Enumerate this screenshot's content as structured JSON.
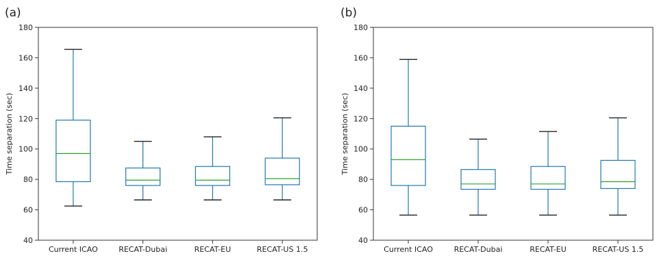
{
  "figure": {
    "panel_labels": [
      "(a)",
      "(b)"
    ]
  },
  "colors": {
    "box": "#1f77b4",
    "median": "#2ca02c",
    "axis": "#333333"
  },
  "chart_data": [
    {
      "type": "box",
      "panel_label": "(a)",
      "ylabel": "Time separation (sec)",
      "xlabel": "",
      "ylim": [
        40,
        180
      ],
      "yticks": [
        40,
        60,
        80,
        100,
        120,
        140,
        160,
        180
      ],
      "grid": false,
      "categories": [
        "Current ICAO",
        "RECAT-Dubai",
        "RECAT-EU",
        "RECAT-US 1.5"
      ],
      "boxes": [
        {
          "whisker_low": 62.5,
          "q1": 78.5,
          "median": 97,
          "q3": 119,
          "whisker_high": 165.5
        },
        {
          "whisker_low": 66.5,
          "q1": 76,
          "median": 79.5,
          "q3": 87.5,
          "whisker_high": 105
        },
        {
          "whisker_low": 66.5,
          "q1": 76,
          "median": 79.5,
          "q3": 88.5,
          "whisker_high": 108
        },
        {
          "whisker_low": 66.5,
          "q1": 76.5,
          "median": 80.5,
          "q3": 94,
          "whisker_high": 120.5
        }
      ]
    },
    {
      "type": "box",
      "panel_label": "(b)",
      "ylabel": "Time separation (sec)",
      "xlabel": "",
      "ylim": [
        40,
        180
      ],
      "yticks": [
        40,
        60,
        80,
        100,
        120,
        140,
        160,
        180
      ],
      "grid": false,
      "categories": [
        "Current ICAO",
        "RECAT-Dubai",
        "RECAT-EU",
        "RECAT-US 1.5"
      ],
      "boxes": [
        {
          "whisker_low": 56.5,
          "q1": 76,
          "median": 93,
          "q3": 115,
          "whisker_high": 159
        },
        {
          "whisker_low": 56.5,
          "q1": 73.5,
          "median": 77,
          "q3": 86.5,
          "whisker_high": 106.5
        },
        {
          "whisker_low": 56.5,
          "q1": 73.5,
          "median": 77,
          "q3": 88.5,
          "whisker_high": 111.5
        },
        {
          "whisker_low": 56.5,
          "q1": 74,
          "median": 78.5,
          "q3": 92.5,
          "whisker_high": 120.5
        }
      ]
    }
  ]
}
